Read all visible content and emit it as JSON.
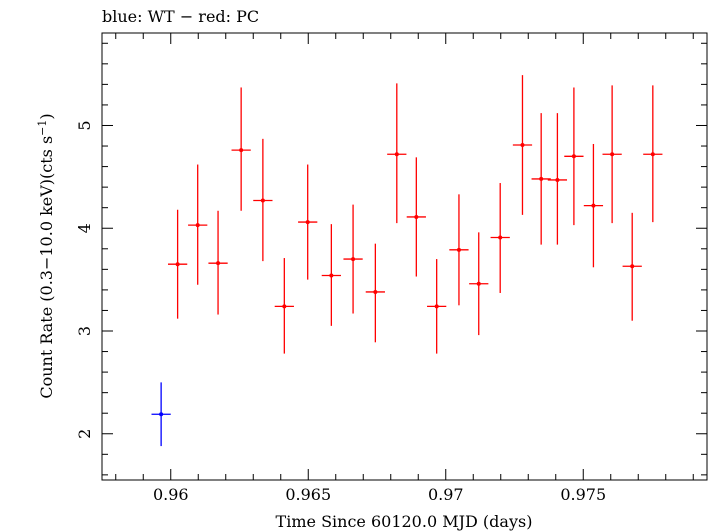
{
  "chart_data": {
    "type": "scatter",
    "title": "blue: WT − red: PC",
    "xlabel": "Time Since 60120.0 MJD (days)",
    "ylabel_main": "Count Rate (0.3−10.0 keV)(cts s",
    "ylabel_sup": "−1",
    "ylabel_end": ")",
    "xlim": [
      0.9575,
      0.9795
    ],
    "ylim": [
      1.55,
      5.9
    ],
    "x_ticks": [
      0.96,
      0.965,
      0.97,
      0.975
    ],
    "x_tick_labels": [
      "0.96",
      "0.965",
      "0.97",
      "0.975"
    ],
    "y_ticks": [
      2,
      3,
      4,
      5
    ],
    "y_tick_labels": [
      "2",
      "3",
      "4",
      "5"
    ],
    "grid": false,
    "series": [
      {
        "color": "#0000ff",
        "points": [
          {
            "x": 0.95965,
            "y": 2.19,
            "xerr": 0.00035,
            "ylo": 1.88,
            "yhi": 2.5
          }
        ]
      },
      {
        "color": "#ff0000",
        "points": [
          {
            "x": 0.96025,
            "y": 3.65,
            "xerr": 0.00035,
            "ylo": 3.12,
            "yhi": 4.18
          },
          {
            "x": 0.96098,
            "y": 4.03,
            "xerr": 0.00035,
            "ylo": 3.45,
            "yhi": 4.62
          },
          {
            "x": 0.96172,
            "y": 3.66,
            "xerr": 0.00035,
            "ylo": 3.16,
            "yhi": 4.17
          },
          {
            "x": 0.96256,
            "y": 4.76,
            "xerr": 0.00035,
            "ylo": 4.17,
            "yhi": 5.37
          },
          {
            "x": 0.96335,
            "y": 4.27,
            "xerr": 0.00035,
            "ylo": 3.68,
            "yhi": 4.87
          },
          {
            "x": 0.96413,
            "y": 3.24,
            "xerr": 0.00035,
            "ylo": 2.78,
            "yhi": 3.71
          },
          {
            "x": 0.96498,
            "y": 4.06,
            "xerr": 0.00035,
            "ylo": 3.5,
            "yhi": 4.62
          },
          {
            "x": 0.96584,
            "y": 3.54,
            "xerr": 0.00035,
            "ylo": 3.05,
            "yhi": 4.04
          },
          {
            "x": 0.96663,
            "y": 3.7,
            "xerr": 0.00035,
            "ylo": 3.17,
            "yhi": 4.23
          },
          {
            "x": 0.96744,
            "y": 3.38,
            "xerr": 0.00035,
            "ylo": 2.89,
            "yhi": 3.85
          },
          {
            "x": 0.96822,
            "y": 4.72,
            "xerr": 0.00035,
            "ylo": 4.05,
            "yhi": 5.41
          },
          {
            "x": 0.96893,
            "y": 4.11,
            "xerr": 0.00035,
            "ylo": 3.53,
            "yhi": 4.69
          },
          {
            "x": 0.96967,
            "y": 3.24,
            "xerr": 0.00035,
            "ylo": 2.78,
            "yhi": 3.7
          },
          {
            "x": 0.97048,
            "y": 3.79,
            "xerr": 0.00035,
            "ylo": 3.25,
            "yhi": 4.33
          },
          {
            "x": 0.9712,
            "y": 3.46,
            "xerr": 0.00035,
            "ylo": 2.96,
            "yhi": 3.96
          },
          {
            "x": 0.97198,
            "y": 3.91,
            "xerr": 0.00035,
            "ylo": 3.37,
            "yhi": 4.44
          },
          {
            "x": 0.97279,
            "y": 4.81,
            "xerr": 0.00035,
            "ylo": 4.13,
            "yhi": 5.49
          },
          {
            "x": 0.97347,
            "y": 4.48,
            "xerr": 0.00035,
            "ylo": 3.84,
            "yhi": 5.12
          },
          {
            "x": 0.97406,
            "y": 4.47,
            "xerr": 0.00035,
            "ylo": 3.84,
            "yhi": 5.12
          },
          {
            "x": 0.97466,
            "y": 4.7,
            "xerr": 0.00035,
            "ylo": 4.03,
            "yhi": 5.37
          },
          {
            "x": 0.97537,
            "y": 4.22,
            "xerr": 0.00035,
            "ylo": 3.62,
            "yhi": 4.82
          },
          {
            "x": 0.97605,
            "y": 4.72,
            "xerr": 0.00035,
            "ylo": 4.05,
            "yhi": 5.39
          },
          {
            "x": 0.97678,
            "y": 3.63,
            "xerr": 0.00035,
            "ylo": 3.1,
            "yhi": 4.15
          },
          {
            "x": 0.97753,
            "y": 4.72,
            "xerr": 0.00035,
            "ylo": 4.06,
            "yhi": 5.39
          }
        ]
      }
    ]
  }
}
